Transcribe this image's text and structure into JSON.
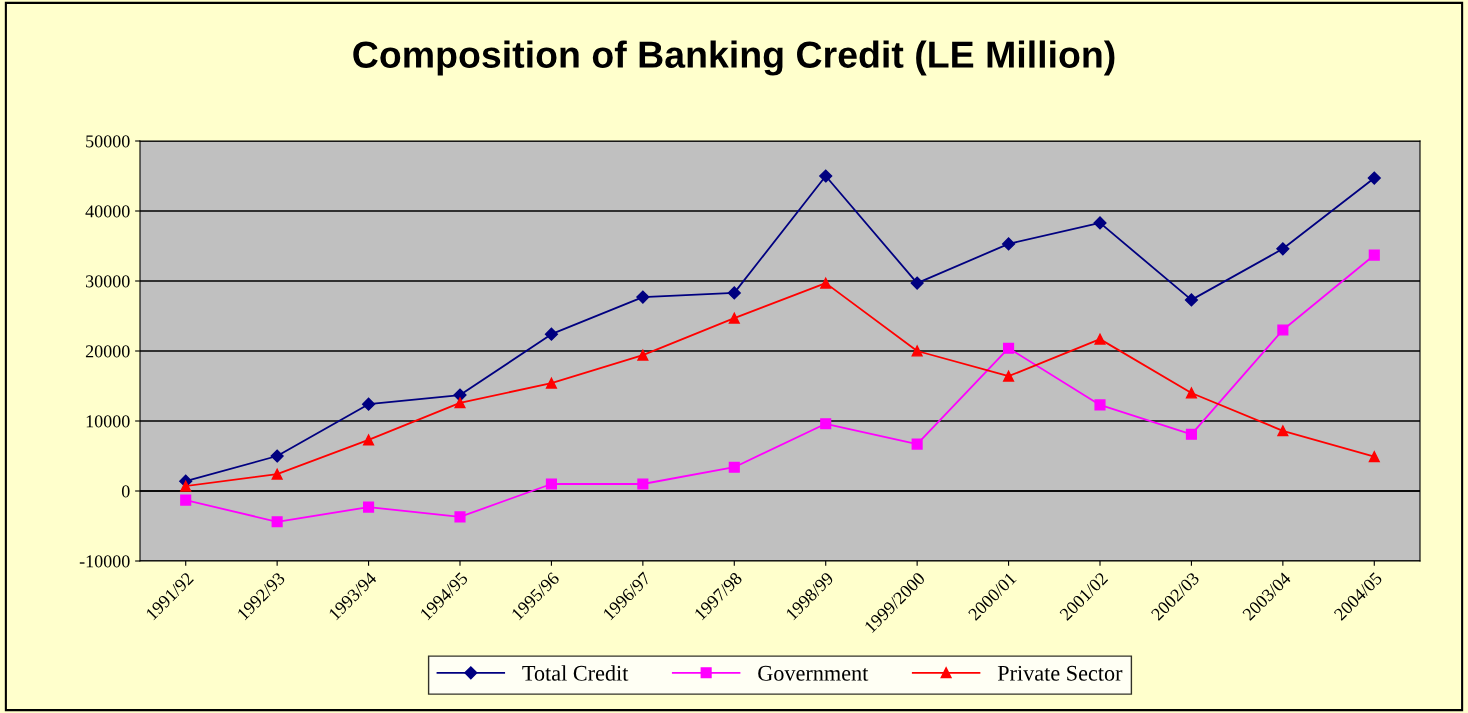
{
  "chart_data": {
    "type": "line",
    "title": "Composition of Banking Credit (LE Million)",
    "categories": [
      "1991/92",
      "1992/93",
      "1993/94",
      "1994/95",
      "1995/96",
      "1996/97",
      "1997/98",
      "1998/99",
      "1999/2000",
      "2000/01",
      "2001/02",
      "2002/03",
      "2003/04",
      "2004/05"
    ],
    "series": [
      {
        "name": "Total Credit",
        "color": "#000080",
        "marker": "diamond",
        "values": [
          1400,
          5000,
          12400,
          13700,
          22400,
          27700,
          28300,
          45000,
          29700,
          35300,
          38300,
          27300,
          34600,
          44700
        ]
      },
      {
        "name": "Government",
        "color": "#ff00ff",
        "marker": "square",
        "values": [
          -1300,
          -4400,
          -2300,
          -3700,
          1000,
          1000,
          3400,
          9600,
          6700,
          20400,
          12300,
          8100,
          23000,
          33700
        ]
      },
      {
        "name": "Private Sector",
        "color": "#ff0000",
        "marker": "triangle",
        "values": [
          700,
          2400,
          7300,
          12600,
          15400,
          19400,
          24700,
          29700,
          20000,
          16400,
          21700,
          14000,
          8600,
          4900
        ]
      }
    ],
    "ylim": [
      -10000,
      50000
    ],
    "yticks": [
      -10000,
      0,
      10000,
      20000,
      30000,
      40000,
      50000
    ],
    "grid": "y",
    "legend": "bottom",
    "line_style": "solid"
  }
}
